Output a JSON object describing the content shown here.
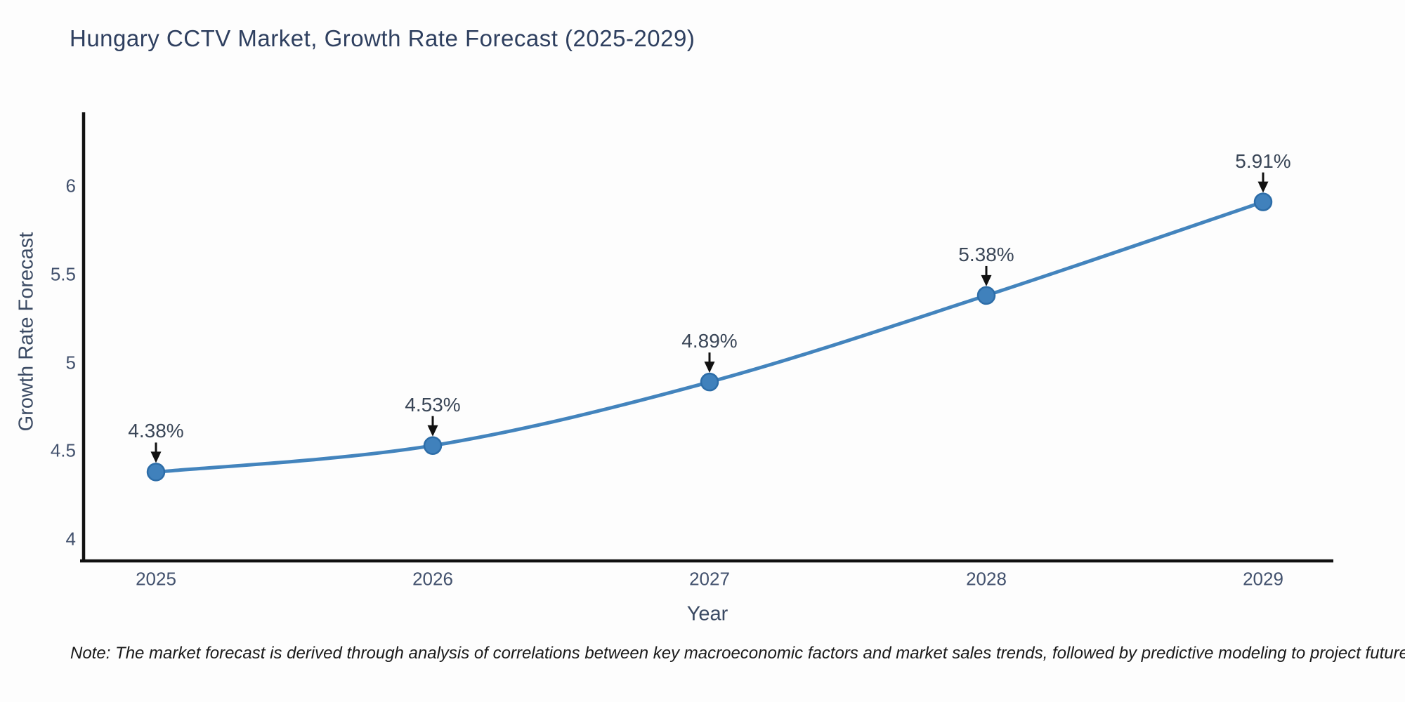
{
  "chart_data": {
    "type": "line",
    "title": "Hungary CCTV Market, Growth Rate Forecast (2025-2029)",
    "xlabel": "Year",
    "ylabel": "Growth Rate Forecast",
    "categories": [
      "2025",
      "2026",
      "2027",
      "2028",
      "2029"
    ],
    "series": [
      {
        "name": "Growth Rate Forecast",
        "values": [
          4.38,
          4.53,
          4.89,
          5.38,
          5.91
        ],
        "data_labels": [
          "4.38%",
          "4.53%",
          "4.89%",
          "5.38%",
          "5.91%"
        ]
      }
    ],
    "ytick_values": [
      4,
      4.5,
      5,
      5.5,
      6
    ],
    "ytick_labels": [
      "4",
      "4.5",
      "5",
      "5.5",
      "6"
    ],
    "ylim": [
      3.87,
      6.45
    ],
    "grid": false,
    "legend": false,
    "line_style": "smooth",
    "annotations": "value labels with downward arrows above each marker"
  },
  "note": {
    "text": "Note: The market forecast is derived through analysis of correlations between key macroeconomic factors and market sales trends, followed by predictive modeling to project future sales."
  },
  "colors": {
    "title": "#2e3f5f",
    "axis_label": "#3b4a63",
    "tick_label": "#42516d",
    "axis_line": "#111111",
    "line": "#4384bd",
    "marker_fill": "#4081bc",
    "marker_edge": "#2d6da8",
    "arrow": "#111111",
    "background": "#fdfdfd"
  }
}
